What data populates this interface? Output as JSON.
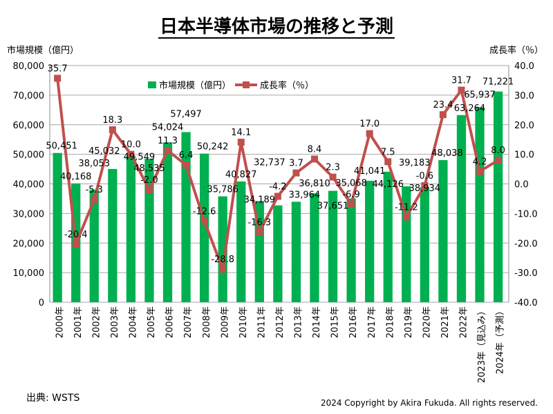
{
  "chart_data": {
    "type": "bar+line",
    "title": "日本半導体市場の推移と予測",
    "ylabel_left": "市場規模（億円）",
    "ylabel_right": "成長率（％）",
    "ylim_left": [
      0,
      80000
    ],
    "ylim_right": [
      -40,
      40
    ],
    "yticks_left": [
      "0",
      "10,000",
      "20,000",
      "30,000",
      "40,000",
      "50,000",
      "60,000",
      "70,000",
      "80,000"
    ],
    "yticks_right": [
      "-40.0",
      "-30.0",
      "-20.0",
      "-10.0",
      "0.0",
      "10.0",
      "20.0",
      "30.0",
      "40.0"
    ],
    "grid": true,
    "legend_position": "top-left",
    "categories": [
      "2000年",
      "2001年",
      "2002年",
      "2003年",
      "2004年",
      "2005年",
      "2006年",
      "2007年",
      "2008年",
      "2009年",
      "2010年",
      "2011年",
      "2012年",
      "2013年",
      "2014年",
      "2015年",
      "2016年",
      "2017年",
      "2018年",
      "2019年",
      "2020年",
      "2021年",
      "2022年",
      "2023年（見込み）",
      "2024年（予測）"
    ],
    "series": [
      {
        "name": "市場規模（億円）",
        "type": "bar",
        "axis": "left",
        "color": "#00b050",
        "values": [
          50451,
          40168,
          38053,
          45032,
          49549,
          48535,
          54024,
          57497,
          50242,
          35786,
          40827,
          34189,
          32737,
          33964,
          36810,
          37651,
          35068,
          41041,
          44126,
          39183,
          38934,
          48038,
          63264,
          65937,
          71221
        ],
        "labels": [
          "50,451",
          "40,168",
          "38,053",
          "45,032",
          "49,549",
          "48,535",
          "54,024",
          "57,497",
          "50,242",
          "35,786",
          "40,827",
          "34,189",
          "32,737",
          "33,964",
          "36,810",
          "37,651",
          "35,068",
          "41,041",
          "44,126",
          "39,183",
          "38,934",
          "48,038",
          "63,264",
          "65,937",
          "71,221"
        ]
      },
      {
        "name": "成長率（％）",
        "type": "line",
        "axis": "right",
        "color": "#c0504d",
        "values": [
          35.7,
          -20.4,
          -5.3,
          18.3,
          10.0,
          -2.0,
          11.3,
          6.4,
          -12.6,
          -28.8,
          14.1,
          -16.3,
          -4.2,
          3.7,
          8.4,
          2.3,
          -6.9,
          17.0,
          7.5,
          -11.2,
          -0.6,
          23.4,
          31.7,
          4.2,
          8.0
        ],
        "labels": [
          "35.7",
          "-20.4",
          "-5.3",
          "18.3",
          "10.0",
          "-2.0",
          "11.3",
          "6.4",
          "-12.6",
          "-28.8",
          "14.1",
          "-16.3",
          "-4.2",
          "3.7",
          "8.4",
          "2.3",
          "-6.9",
          "17.0",
          "7.5",
          "-11.2",
          "-0.6",
          "23.4",
          "31.7",
          "4.2",
          "8.0"
        ]
      }
    ]
  },
  "source": "出典: WSTS",
  "copyright": "2024 Copyright by Akira Fukuda. All rights reserved."
}
